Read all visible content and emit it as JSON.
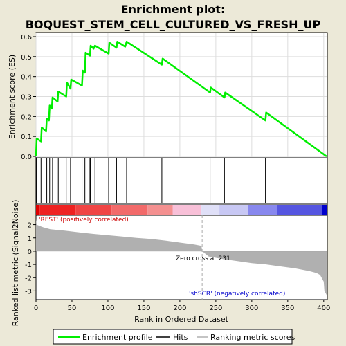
{
  "title_line1": "Enrichment plot:",
  "title_line2": "BOQUEST_STEM_CELL_CULTURED_VS_FRESH_UP",
  "colors": {
    "background": "#ece9d8",
    "enrichment_line": "#00ee00",
    "hits": "#000000",
    "ranking_fill": "#b0b0b0",
    "zero_cross_dash": "#aaaaaa",
    "positive_label": "#cc0000",
    "negative_label": "#0000cc"
  },
  "chart_data": [
    {
      "type": "line",
      "name": "enrichment-score",
      "ylabel": "Enrichment score (ES)",
      "ylim": [
        0,
        0.6
      ],
      "yticks": [
        "0.0",
        "0.1",
        "0.2",
        "0.3",
        "0.4",
        "0.5",
        "0.6"
      ],
      "xlim": [
        0,
        405
      ],
      "grid": true,
      "series": [
        {
          "name": "Enrichment profile",
          "x": [
            0,
            1,
            7,
            8,
            14,
            15,
            18,
            19,
            22,
            23,
            30,
            31,
            42,
            43,
            48,
            49,
            64,
            65,
            68,
            69,
            75,
            76,
            80,
            82,
            101,
            102,
            112,
            113,
            124,
            126,
            175,
            176,
            242,
            243,
            262,
            263,
            319,
            320,
            404
          ],
          "y": [
            0.0,
            0.09,
            0.075,
            0.145,
            0.125,
            0.19,
            0.18,
            0.255,
            0.24,
            0.295,
            0.275,
            0.325,
            0.3,
            0.37,
            0.34,
            0.385,
            0.355,
            0.43,
            0.42,
            0.52,
            0.505,
            0.555,
            0.54,
            0.555,
            0.515,
            0.57,
            0.545,
            0.575,
            0.55,
            0.575,
            0.46,
            0.49,
            0.32,
            0.345,
            0.295,
            0.32,
            0.18,
            0.22,
            0.0
          ]
        }
      ]
    },
    {
      "type": "scatter",
      "name": "hits",
      "x": [
        1,
        7,
        15,
        19,
        23,
        31,
        42,
        48,
        64,
        68,
        75,
        76,
        82,
        101,
        112,
        126,
        175,
        242,
        262,
        319
      ]
    },
    {
      "type": "area",
      "name": "ranked-list-metric",
      "xlabel": "Rank in Ordered Dataset",
      "ylabel": "Ranked list metric (Signal2Noise)",
      "ylim": [
        -3.5,
        2.5
      ],
      "yticks": [
        "2",
        "1",
        "0",
        "-1",
        "-2",
        "-3"
      ],
      "xticks": [
        "0",
        "50",
        "100",
        "150",
        "200",
        "250",
        "300",
        "350",
        "400"
      ],
      "xlim": [
        0,
        405
      ],
      "series": [
        {
          "name": "Ranking metric scores",
          "x": [
            0,
            1,
            5,
            10,
            20,
            40,
            60,
            80,
            100,
            120,
            140,
            160,
            180,
            200,
            220,
            230,
            231,
            240,
            260,
            280,
            300,
            320,
            340,
            360,
            380,
            390,
            395,
            400,
            401,
            403,
            404
          ],
          "y": [
            2.4,
            2.0,
            1.9,
            1.8,
            1.65,
            1.55,
            1.42,
            1.3,
            1.2,
            1.1,
            1.0,
            0.92,
            0.8,
            0.65,
            0.5,
            0.4,
            0.0,
            -0.4,
            -0.6,
            -0.75,
            -0.9,
            -1.0,
            -1.15,
            -1.3,
            -1.5,
            -1.65,
            -1.8,
            -2.3,
            -3.0,
            -3.2,
            -3.3
          ]
        }
      ],
      "annotations": [
        {
          "text": "'REST' (positively correlated)",
          "x": 0,
          "color": "#cc0000"
        },
        {
          "text": "Zero cross at 231",
          "x": 231
        },
        {
          "text": "'shSCR' (negatively correlated)",
          "x": 290,
          "color": "#0000cc"
        }
      ]
    }
  ],
  "heatbar": [
    {
      "from": 0,
      "to": 5,
      "color": "#dd0000"
    },
    {
      "from": 5,
      "to": 55,
      "color": "#ee2222"
    },
    {
      "from": 55,
      "to": 105,
      "color": "#f04444"
    },
    {
      "from": 105,
      "to": 155,
      "color": "#f26a6a"
    },
    {
      "from": 155,
      "to": 190,
      "color": "#f49090"
    },
    {
      "from": 190,
      "to": 230,
      "color": "#f8c0d8"
    },
    {
      "from": 230,
      "to": 255,
      "color": "#e0e0f8"
    },
    {
      "from": 255,
      "to": 295,
      "color": "#c8c8f4"
    },
    {
      "from": 295,
      "to": 335,
      "color": "#8888ee"
    },
    {
      "from": 335,
      "to": 398,
      "color": "#5555e0"
    },
    {
      "from": 398,
      "to": 405,
      "color": "#0000cc"
    }
  ],
  "legend": {
    "items": [
      {
        "label": "Enrichment profile",
        "icon": "green-line"
      },
      {
        "label": "Hits",
        "icon": "black-line"
      },
      {
        "label": "Ranking metric scores",
        "icon": "gray-line"
      }
    ]
  }
}
